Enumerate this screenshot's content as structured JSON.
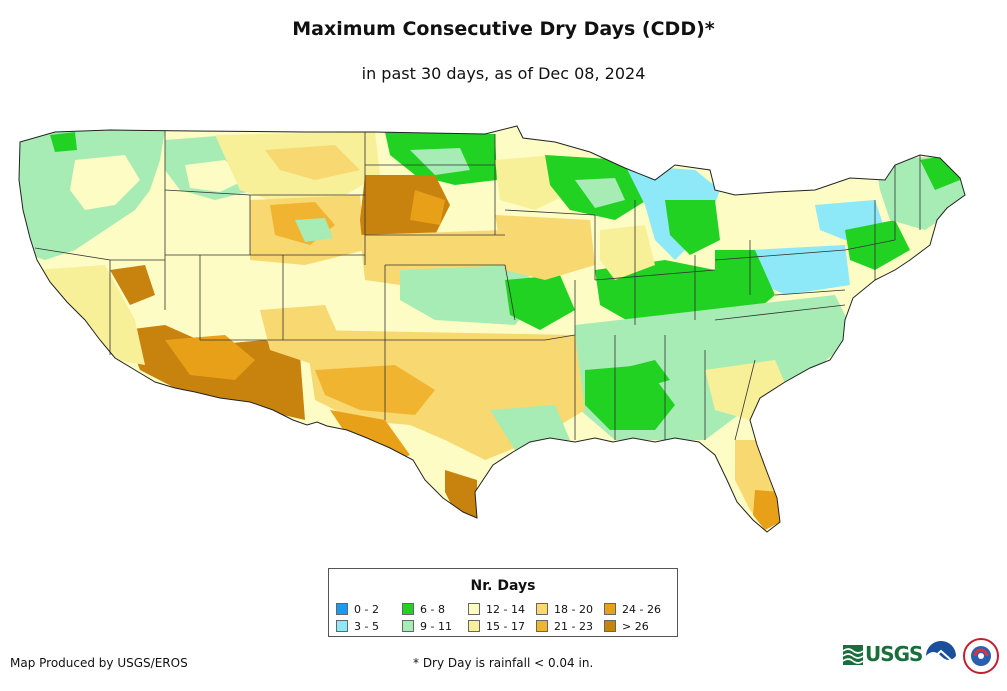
{
  "header": {
    "title": "Maximum Consecutive Dry Days (CDD)*",
    "subtitle": "in past 30 days, as of Dec 08, 2024"
  },
  "legend": {
    "title": "Nr. Days",
    "items": [
      {
        "label": "0 - 2",
        "color": "#1a9af0"
      },
      {
        "label": "3 - 5",
        "color": "#8de8f8"
      },
      {
        "label": "6 - 8",
        "color": "#22d222"
      },
      {
        "label": "9 - 11",
        "color": "#a6ecb4"
      },
      {
        "label": "12 - 14",
        "color": "#fcfcc4"
      },
      {
        "label": "15 - 17",
        "color": "#f8f098"
      },
      {
        "label": "18 - 20",
        "color": "#f8d870"
      },
      {
        "label": "21 - 23",
        "color": "#f0b430"
      },
      {
        "label": "24 - 26",
        "color": "#e8a018"
      },
      {
        "label": "> 26",
        "color": "#c8820e"
      }
    ]
  },
  "footer": {
    "credit": "Map Produced by USGS/EROS",
    "footnote": "* Dry Day is rainfall < 0.04 in."
  },
  "logos": {
    "usgs": {
      "label": "USGS",
      "icon": "usgs-logo"
    },
    "noaa": {
      "icon": "noaa-logo"
    },
    "nws": {
      "icon": "nws-logo"
    }
  },
  "map": {
    "name": "CONUS maximum consecutive dry days"
  }
}
